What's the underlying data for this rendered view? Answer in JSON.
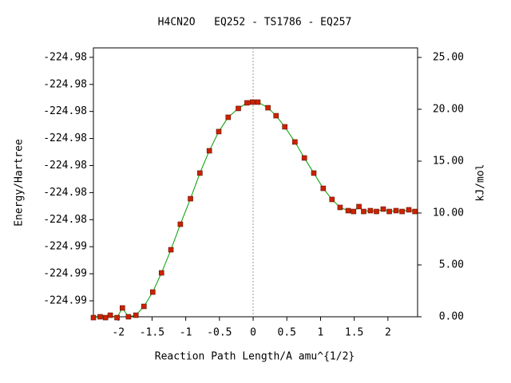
{
  "chart_data": {
    "type": "line",
    "title": "H4CN2O   EQ252 - TS1786 - EQ257",
    "xlabel": "Reaction Path Length/A amu^{1/2}",
    "ylabel": "Energy/Hartree",
    "y2label": "kJ/mol",
    "xlim": [
      -2.37,
      2.44
    ],
    "xticks": [
      -2,
      -1.5,
      -1,
      -0.5,
      0,
      0.5,
      1,
      1.5,
      2
    ],
    "ylim": [
      -224.98809,
      -224.97815
    ],
    "yticks": [
      {
        "value": -224.9875,
        "label": "-224.99"
      },
      {
        "value": -224.9865,
        "label": "-224.99"
      },
      {
        "value": -224.9855,
        "label": "-224.99"
      },
      {
        "value": -224.9845,
        "label": "-224.98"
      },
      {
        "value": -224.9835,
        "label": "-224.98"
      },
      {
        "value": -224.9825,
        "label": "-224.98"
      },
      {
        "value": -224.9815,
        "label": "-224.98"
      },
      {
        "value": -224.9805,
        "label": "-224.98"
      },
      {
        "value": -224.9795,
        "label": "-224.98"
      },
      {
        "value": -224.9785,
        "label": "-224.98"
      }
    ],
    "y2lim": [
      0,
      25.92
    ],
    "y2ticks": [
      {
        "value": 0,
        "label": "0.00"
      },
      {
        "value": 5,
        "label": "5.00"
      },
      {
        "value": 10,
        "label": "10.00"
      },
      {
        "value": 15,
        "label": "15.00"
      },
      {
        "value": 20,
        "label": "20.00"
      },
      {
        "value": 25,
        "label": "25.00"
      }
    ],
    "vline": 0,
    "x": [
      -2.37,
      -2.27,
      -2.19,
      -2.12,
      -2.02,
      -1.94,
      -1.85,
      -1.74,
      -1.62,
      -1.49,
      -1.36,
      -1.22,
      -1.08,
      -0.93,
      -0.79,
      -0.65,
      -0.51,
      -0.37,
      -0.22,
      -0.09,
      -0.01,
      0.07,
      0.22,
      0.34,
      0.47,
      0.62,
      0.76,
      0.9,
      1.04,
      1.17,
      1.29,
      1.41,
      1.49,
      1.57,
      1.64,
      1.74,
      1.83,
      1.93,
      2.02,
      2.12,
      2.21,
      2.31,
      2.4
    ],
    "series": [
      {
        "color": "#00a000",
        "marker_color": "#cc2200",
        "axis": "y2",
        "values": [
          -0.08,
          0,
          -0.08,
          0.15,
          -0.08,
          0.85,
          0,
          0.15,
          1.0,
          2.38,
          4.23,
          6.46,
          8.92,
          11.38,
          13.85,
          16.0,
          17.85,
          19.23,
          20.08,
          20.62,
          20.69,
          20.69,
          20.15,
          19.38,
          18.31,
          16.85,
          15.31,
          13.85,
          12.38,
          11.31,
          10.54,
          10.23,
          10.15,
          10.62,
          10.15,
          10.23,
          10.15,
          10.38,
          10.15,
          10.23,
          10.15,
          10.31,
          10.15
        ]
      }
    ]
  }
}
